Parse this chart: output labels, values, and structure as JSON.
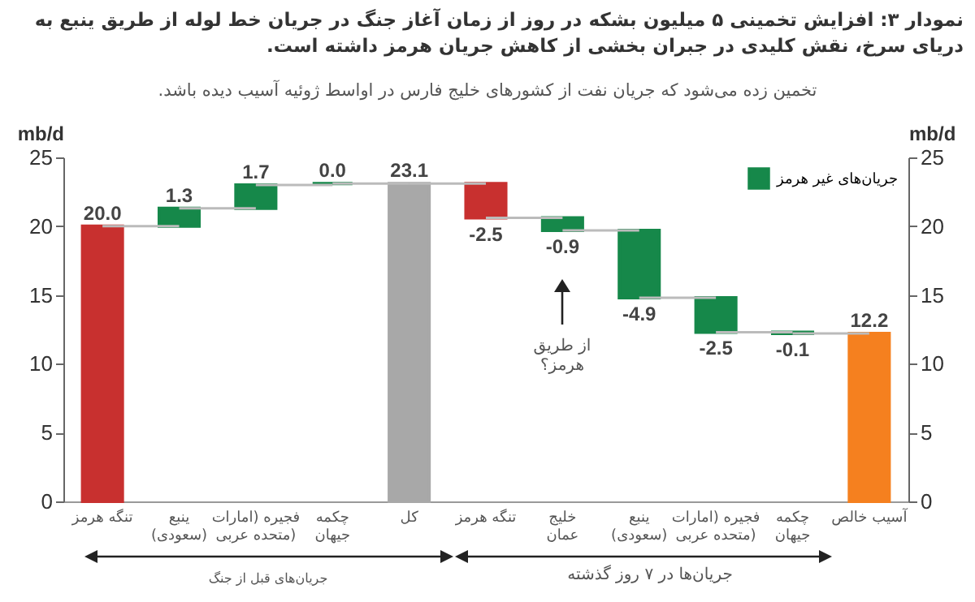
{
  "chart_data": {
    "type": "bar",
    "title": "نمودار ۳: افزایش تخمینی ۵ میلیون بشکه در روز از زمان آغاز جنگ در جریان خط لوله از طریق ینبع به دریای سرخ، نقش کلیدی در جبران بخشی از کاهش جریان هرمز داشته است.",
    "subtitle": "تخمین زده می‌شود که جریان نفت از کشورهای خلیج فارس در اواسط ژوئیه آسیب دیده باشد.",
    "ylabel": "mb/d",
    "y2label": "mb/d",
    "categories": [
      "تنگه هرمز",
      "ینبع\n(سعودی)",
      "فجیره (امارات\nمتحده عربی)",
      "چکمه\nجیهان",
      "کل",
      "تنگه هرمز",
      "خلیج\nعمان",
      "ینبع\n(سعودی)",
      "فجیره (امارات\nمتحده عربی)",
      "چکمه\nجیهان",
      "آسیب خالص"
    ],
    "series": [
      {
        "color": "#c8302f",
        "values": [
          20.0,
          null,
          null,
          null,
          null,
          -2.5,
          null,
          null,
          null,
          null,
          null
        ],
        "base": [
          0,
          null,
          null,
          null,
          null,
          23.1,
          null,
          null,
          null,
          null,
          null
        ],
        "value_labels": [
          "20.0",
          null,
          null,
          null,
          null,
          "-2.5",
          null,
          null,
          null,
          null,
          null
        ]
      },
      {
        "name": "جریان‌های غیر هرمز",
        "color": "#16884a",
        "values": [
          null,
          1.3,
          1.7,
          0.0,
          null,
          null,
          -0.9,
          -4.9,
          -2.5,
          -0.1,
          null
        ],
        "base": [
          null,
          20,
          21.3,
          23.1,
          null,
          null,
          20.6,
          19.7,
          14.8,
          12.3,
          null
        ],
        "value_labels": [
          null,
          "1.3",
          "1.7",
          "0.0",
          null,
          null,
          "-0.9",
          "-4.9",
          "-2.5",
          "-0.1",
          null
        ]
      },
      {
        "color": "#a8a8a8",
        "values": [
          null,
          null,
          null,
          null,
          23.1,
          null,
          null,
          null,
          null,
          null,
          null
        ],
        "base": [
          null,
          null,
          null,
          null,
          0,
          null,
          null,
          null,
          null,
          null,
          null
        ],
        "value_labels": [
          null,
          null,
          null,
          null,
          "23.1",
          null,
          null,
          null,
          null,
          null,
          null
        ]
      },
      {
        "color": "#f5801f",
        "values": [
          null,
          null,
          null,
          null,
          null,
          null,
          null,
          null,
          null,
          null,
          12.2
        ],
        "base": [
          null,
          null,
          null,
          null,
          null,
          null,
          null,
          null,
          null,
          null,
          0
        ],
        "value_labels": [
          null,
          null,
          null,
          null,
          null,
          null,
          null,
          null,
          null,
          null,
          "12.2"
        ]
      }
    ],
    "ylim": [
      0,
      25
    ],
    "yticks": [
      0,
      5,
      10,
      15,
      20,
      25
    ],
    "y2lim": [
      0,
      25
    ],
    "y2ticks": [
      0,
      5,
      10,
      15,
      20,
      25
    ],
    "legend": "top right",
    "annotations": [
      "از طریق هرمز؟",
      "جریان‌های قبل از جنگ",
      "جریان‌ها در ۷ روز گذشته"
    ]
  }
}
